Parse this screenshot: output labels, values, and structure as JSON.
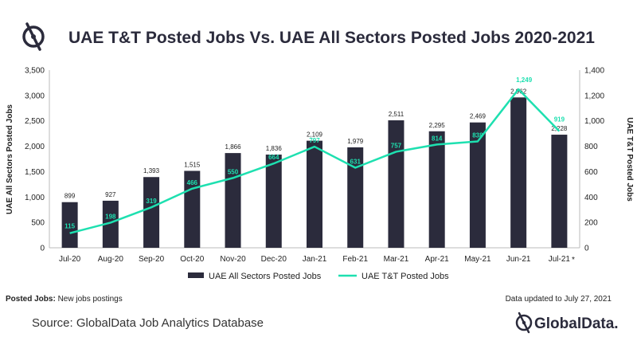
{
  "chart_data": {
    "type": "bar",
    "title": "UAE T&T Posted Jobs Vs. UAE All Sectors Posted Jobs 2020-2021",
    "categories": [
      "Jul-20",
      "Aug-20",
      "Sep-20",
      "Oct-20",
      "Nov-20",
      "Dec-20",
      "Jan-21",
      "Feb-21",
      "Mar-21",
      "Apr-21",
      "May-21",
      "Jun-21",
      "Jul-21"
    ],
    "series": [
      {
        "name": "UAE All Sectors Posted Jobs",
        "type": "bar",
        "axis": "left",
        "values": [
          899,
          927,
          1393,
          1515,
          1866,
          1836,
          2109,
          1979,
          2511,
          2295,
          2469,
          2962,
          2228
        ],
        "labels": [
          "899",
          "927",
          "1,393",
          "1,515",
          "1,866",
          "1,836",
          "2,109",
          "1,979",
          "2,511",
          "2,295",
          "2,469",
          "2,962",
          "2,228"
        ],
        "color": "#2b2b3c"
      },
      {
        "name": "UAE T&T Posted Jobs",
        "type": "line",
        "axis": "right",
        "values": [
          115,
          198,
          319,
          466,
          550,
          664,
          797,
          631,
          757,
          814,
          838,
          1249,
          919
        ],
        "labels": [
          "115",
          "198",
          "319",
          "466",
          "550",
          "664",
          "797",
          "631",
          "757",
          "814",
          "838",
          "1,249",
          "919"
        ],
        "color": "#1ee0b0"
      }
    ],
    "y_left": {
      "label": "UAE All Sectors Posted Jobs",
      "range": [
        0,
        3500
      ],
      "ticks": [
        "0",
        "500",
        "1,000",
        "1,500",
        "2,000",
        "2,500",
        "3,000",
        "3,500"
      ]
    },
    "y_right": {
      "label": "UAE T&T Posted Jobs",
      "range": [
        0,
        1400
      ],
      "ticks": [
        "0",
        "200",
        "400",
        "600",
        "800",
        "1,000",
        "1,200",
        "1,400"
      ]
    },
    "grid": false,
    "legend": "bottom-center",
    "asterisk": "*"
  },
  "footnote": {
    "bold": "Posted Jobs:",
    "text": " New jobs postings"
  },
  "updated": "Data updated to July 27, 2021",
  "source": "Source: GlobalData Job Analytics Database",
  "brand": "GlobalData."
}
